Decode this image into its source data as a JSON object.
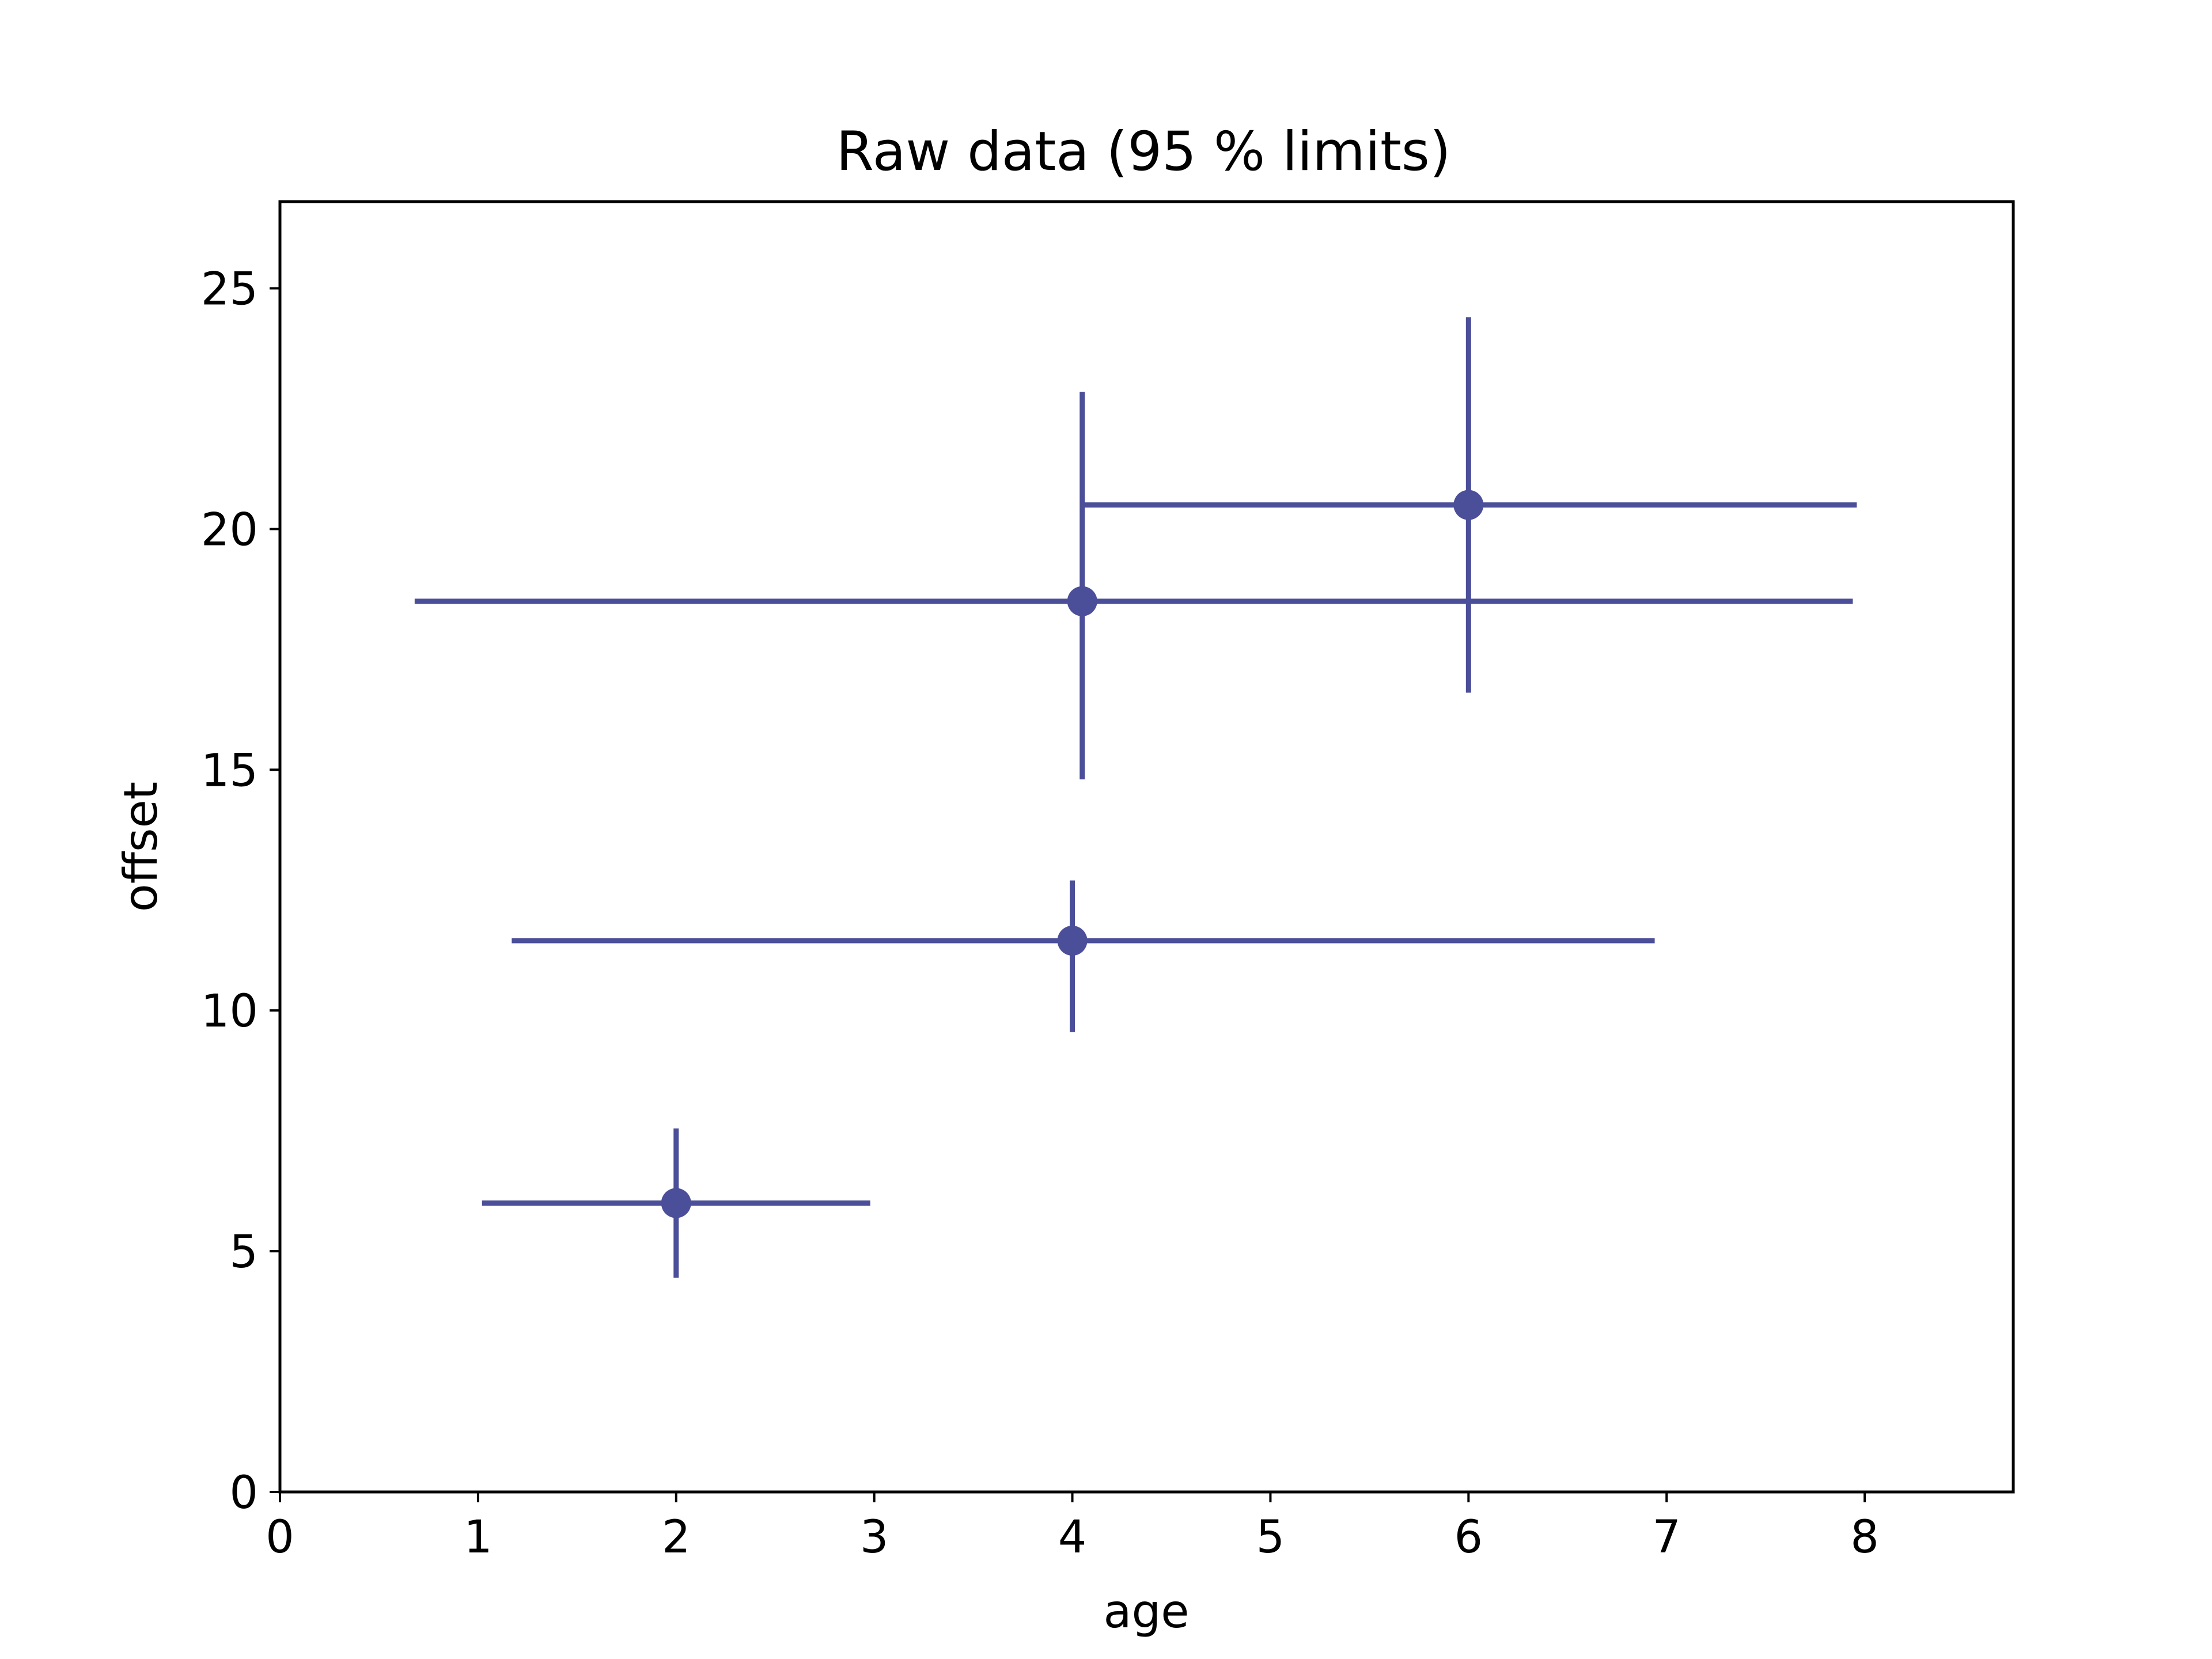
{
  "chart_data": {
    "type": "scatter",
    "title": "Raw data (95 % limits)",
    "xlabel": "age",
    "ylabel": "offset",
    "xlim": [
      0,
      8.75
    ],
    "ylim": [
      0,
      26.8
    ],
    "xticks": [
      "0",
      "1",
      "2",
      "3",
      "4",
      "5",
      "6",
      "7",
      "8"
    ],
    "yticks": [
      "0",
      "5",
      "10",
      "15",
      "20",
      "25"
    ],
    "grid": false,
    "legend": "none",
    "series_color": "#4b4e98",
    "points": [
      {
        "x": 2.0,
        "y": 6.0,
        "x_low": 1.02,
        "x_high": 2.98,
        "y_low": 4.45,
        "y_high": 7.55
      },
      {
        "x": 4.0,
        "y": 11.45,
        "x_low": 1.17,
        "x_high": 6.94,
        "y_low": 9.55,
        "y_high": 12.7
      },
      {
        "x": 4.05,
        "y": 18.5,
        "x_low": 0.68,
        "x_high": 7.94,
        "y_low": 14.8,
        "y_high": 22.85
      },
      {
        "x": 6.0,
        "y": 20.5,
        "x_low": 4.05,
        "x_high": 7.96,
        "y_low": 16.6,
        "y_high": 24.4
      }
    ]
  }
}
